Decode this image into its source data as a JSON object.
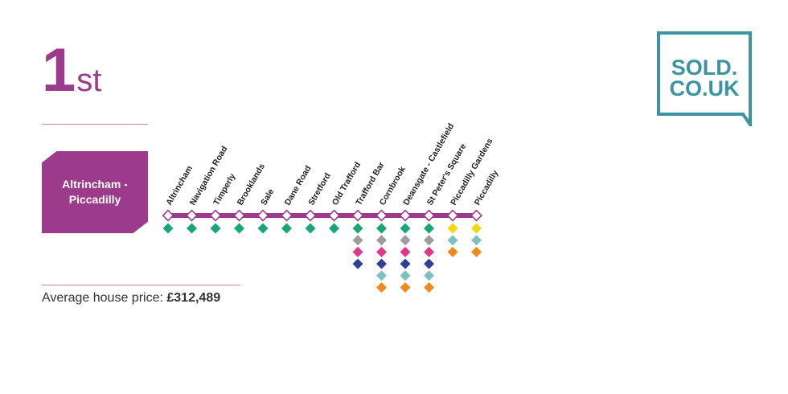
{
  "rank": {
    "number": "1",
    "suffix": "st"
  },
  "route": {
    "line1": "Altrincham -",
    "line2": "Piccadilly"
  },
  "price": {
    "label": "Average house price:",
    "value": "£312,489"
  },
  "logo": {
    "line1": "SOLD.",
    "line2": "CO.UK",
    "color": "#3a94a3"
  },
  "colors": {
    "brand_purple": "#9c3a8c",
    "green": "#15a679",
    "grey": "#9d9d9d",
    "pink": "#e2368a",
    "navy": "#2e3f95",
    "teal": "#7dc0c3",
    "orange": "#ef8a1d",
    "yellow": "#f6d70f"
  },
  "stations": [
    {
      "name": "Altrincham",
      "lines": [
        "green"
      ]
    },
    {
      "name": "Navigation Road",
      "lines": [
        "green"
      ]
    },
    {
      "name": "Timperly",
      "lines": [
        "green"
      ]
    },
    {
      "name": "Brooklands",
      "lines": [
        "green"
      ]
    },
    {
      "name": "Sale",
      "lines": [
        "green"
      ]
    },
    {
      "name": "Dane Road",
      "lines": [
        "green"
      ]
    },
    {
      "name": "Stretford",
      "lines": [
        "green"
      ]
    },
    {
      "name": "Old Trafford",
      "lines": [
        "green"
      ]
    },
    {
      "name": "Trafford Bar",
      "lines": [
        "green",
        "grey",
        "pink",
        "navy"
      ]
    },
    {
      "name": "Cornbrook",
      "lines": [
        "green",
        "grey",
        "pink",
        "navy",
        "teal",
        "orange"
      ]
    },
    {
      "name": "Deansgate - Castlefield",
      "lines": [
        "green",
        "grey",
        "pink",
        "navy",
        "teal",
        "orange"
      ]
    },
    {
      "name": "St Peter's Square",
      "lines": [
        "green",
        "grey",
        "pink",
        "navy",
        "teal",
        "orange"
      ]
    },
    {
      "name": "Piccadilly Gardens",
      "lines": [
        "yellow",
        "teal",
        "orange"
      ]
    },
    {
      "name": "Piccadilly",
      "lines": [
        "yellow",
        "teal",
        "orange"
      ]
    }
  ]
}
